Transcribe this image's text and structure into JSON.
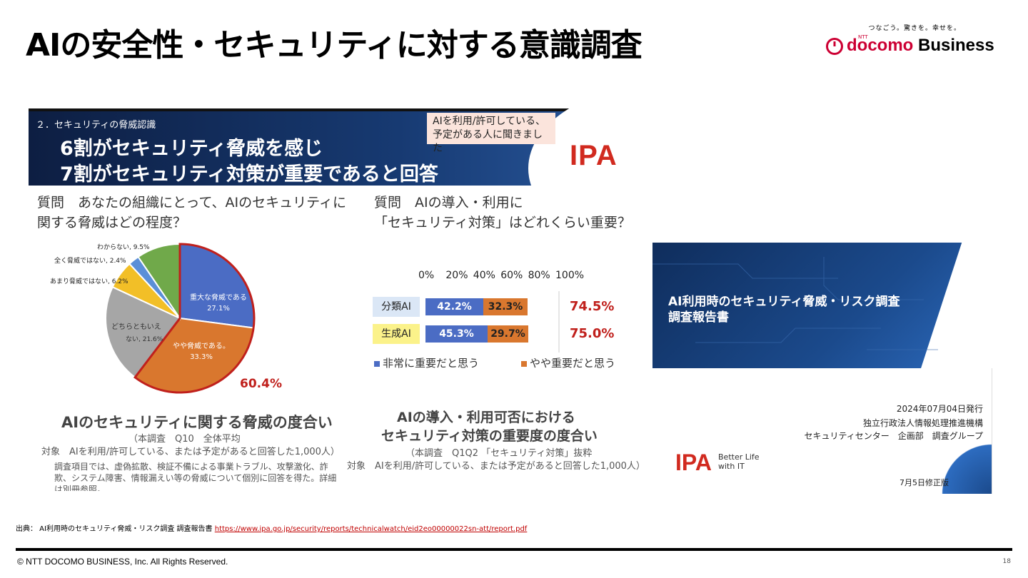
{
  "slide": {
    "title": "AIの安全性・セキュリティに対する意識調査",
    "logo_tagline": "つなごう。驚きを。幸せを。",
    "logo_ntt": "NTT",
    "logo_docomo": "docomo",
    "logo_business": " Business",
    "source_prefix": "出典： AI利用時のセキュリティ脅威・リスク調査 調査報告書",
    "source_url": "https://www.ipa.go.jp/security/reports/technicalwatch/eid2eo00000022sn-att/report.pdf",
    "copyright": "© NTT DOCOMO BUSINESS, Inc. All Rights Reserved.",
    "page_number": "18",
    "colors": {
      "brand_red": "#cc0033",
      "ipa_red": "#d12a1f",
      "navy": "#173a72"
    }
  },
  "figure": {
    "section": "２．セキュリティの脅威認識",
    "headline1": "6割がセキュリティ脅威を感じ",
    "headline2": "7割がセキュリティ対策が重要であると回答",
    "note_line1": "AIを利用/許可している、",
    "note_line2": "予定がある人に聞きました",
    "ipa_logo": "IPA",
    "q1_line1": "質問　あなたの組織にとって、AIのセキュリティに",
    "q1_line2": "関する脅威はどの程度？",
    "q2_line1": "質問　AIの導入・利用に",
    "q2_line2": "「セキュリティ対策」はどれくらい重要？",
    "pie_total": "60.4%",
    "cap1": "AIのセキュリティに関する脅威の度合い",
    "cap1_sub1": "（本調査　Q10　全体平均",
    "cap1_sub2": "対象　AIを利用/許可している、または予定があると回答した1,000人）",
    "cap1_note1": "調査項目では、虚偽拡散、検証不備による事業トラブル、攻撃激化、詐",
    "cap1_note2": "欺、システム障害、情報漏えい等の脅威について個別に回答を得た。詳細",
    "cap1_note3": "は別冊参照。",
    "cap2_line1": "AIの導入・利用可否における",
    "cap2_line2": "セキュリティ対策の重要度の度合い",
    "cap2_sub1": "（本調査　Q1Q2 「セキュリティ対策」抜粋",
    "cap2_sub2": "対象　AIを利用/許可している、または予定があると回答した1,000人）"
  },
  "chart_data": [
    {
      "type": "pie",
      "title": "AIのセキュリティに関する脅威の度合い",
      "slices": [
        {
          "label": "重大な脅威である",
          "value": 27.1,
          "color": "#4b6cc4"
        },
        {
          "label": "やや脅威である",
          "value": 33.3,
          "color": "#d9772e"
        },
        {
          "label": "どちらともいえない",
          "value": 21.6,
          "color": "#a6a6a6"
        },
        {
          "label": "あまり脅威ではない",
          "value": 6.2,
          "color": "#f2bf27"
        },
        {
          "label": "全く脅威ではない",
          "value": 2.4,
          "color": "#5b8fd8"
        },
        {
          "label": "わからない",
          "value": 9.5,
          "color": "#70a94a"
        }
      ],
      "labels_text": {
        "l0": "重大な脅威である",
        "v0": "27.1%",
        "l1": "やや脅威である。",
        "v1": "33.3%",
        "l2a": "どちらともいえ",
        "l2b": "ない, 21.6%",
        "l3": "あまり脅威ではない, 6.2%",
        "l4": "全く脅威ではない, 2.4%",
        "l5": "わからない, 9.5%"
      },
      "highlight_total": 60.4
    },
    {
      "type": "bar",
      "stacked": true,
      "orientation": "horizontal",
      "categories": [
        "分類AI",
        "生成AI"
      ],
      "series": [
        {
          "name": "非常に重要だと思う",
          "values": [
            42.2,
            45.3
          ],
          "color": "#4b6cc4"
        },
        {
          "name": "やや重要だと思う",
          "values": [
            32.3,
            29.7
          ],
          "color": "#d9772e"
        }
      ],
      "totals": [
        74.5,
        75.0
      ],
      "xlim": [
        0,
        100
      ],
      "ticks": [
        "0%",
        "20%",
        "40%",
        "60%",
        "80%",
        "100%"
      ],
      "labels_text": {
        "c0": "分類AI",
        "c1": "生成AI",
        "a0": "42.2%",
        "b0": "32.3%",
        "t0": "74.5%",
        "a1": "45.3%",
        "b1": "29.7%",
        "t1": "75.0%",
        "legend_a": "非常に重要だと思う",
        "legend_b": "やや重要だと思う"
      }
    }
  ],
  "cover": {
    "title_line1": "AI利用時のセキュリティ脅威・リスク調査",
    "title_line2": "調査報告書",
    "date": "2024年07月04日発行",
    "org1": "独立行政法人情報処理推進機構",
    "org2": "セキュリティセンター　企画部　調査グループ",
    "ipa": "IPA",
    "better1": "Better Life",
    "better2": "with IT",
    "revision": "7月5日修正版"
  }
}
